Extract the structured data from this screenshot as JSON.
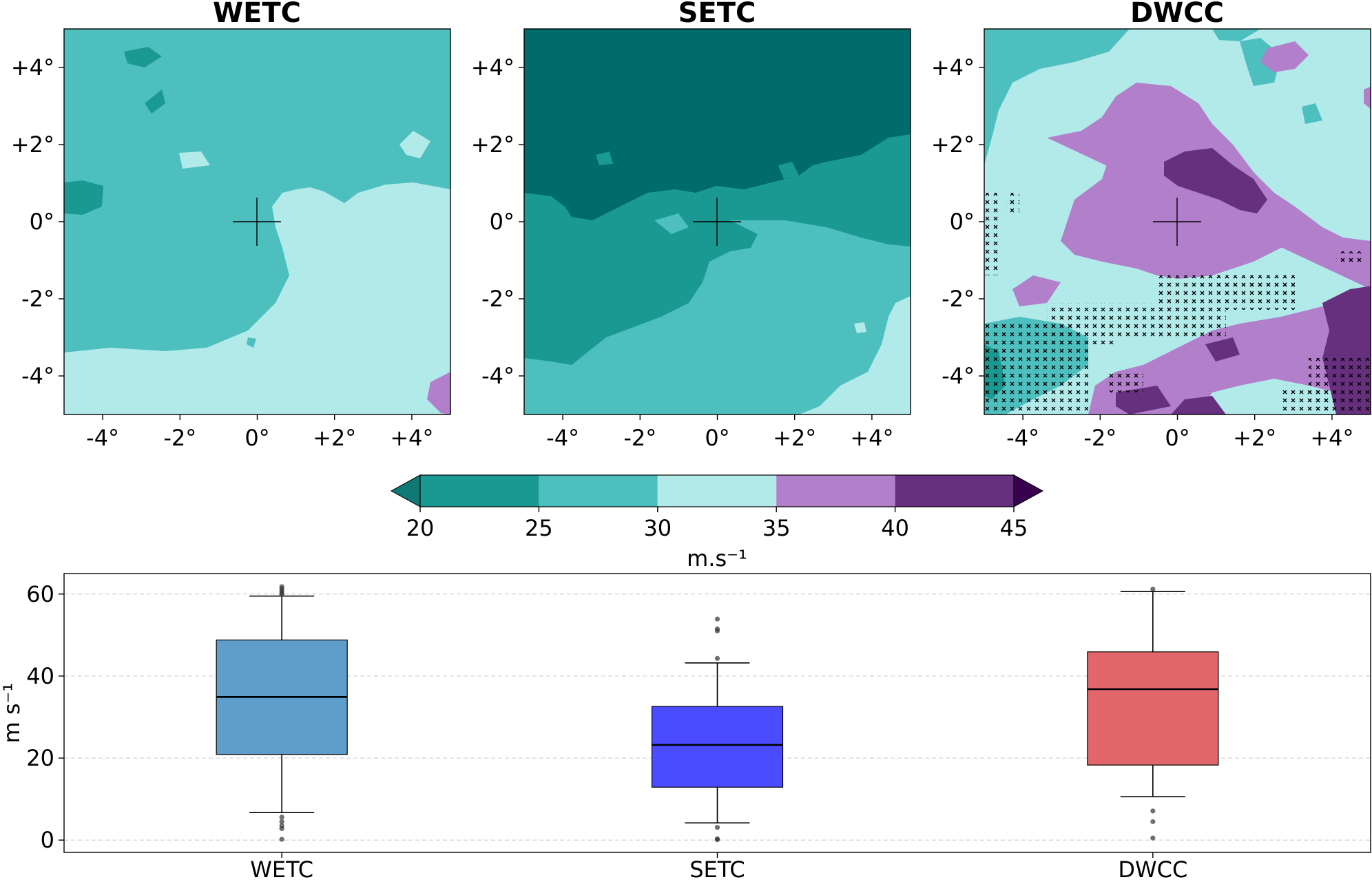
{
  "palette": {
    "b15_20": "#0f7a75",
    "b20_25": "#1a9993",
    "b25_30": "#4ebfbf",
    "b30_35": "#b2eaea",
    "b35_40": "#b27fcb",
    "b40_45": "#66307e",
    "over45": "#3a0050",
    "under15": "#006b6b"
  },
  "chart_data": [
    {
      "type": "heatmap",
      "title": "WETC",
      "xticks": [
        "-4°",
        "-2°",
        "0°",
        "+2°",
        "+4°"
      ],
      "yticks": [
        "+4°",
        "+2°",
        "0°",
        "-2°",
        "-4°"
      ],
      "xlim": [
        -5,
        5
      ],
      "ylim": [
        -5,
        5
      ],
      "center_marker": "plus",
      "dominant_bands": [
        "25-30",
        "30-35"
      ]
    },
    {
      "type": "heatmap",
      "title": "SETC",
      "xticks": [
        "-4°",
        "-2°",
        "0°",
        "+2°",
        "+4°"
      ],
      "yticks": [
        "+4°",
        "+2°",
        "0°",
        "-2°",
        "-4°"
      ],
      "xlim": [
        -5,
        5
      ],
      "ylim": [
        -5,
        5
      ],
      "center_marker": "plus",
      "dominant_bands": [
        "<20",
        "20-25",
        "25-30",
        "30-35"
      ]
    },
    {
      "type": "heatmap",
      "title": "DWCC",
      "xticks": [
        "-4°",
        "-2°",
        "0°",
        "+2°",
        "+4°"
      ],
      "yticks": [
        "+4°",
        "+2°",
        "0°",
        "-2°",
        "-4°"
      ],
      "xlim": [
        -5,
        5
      ],
      "ylim": [
        -5,
        5
      ],
      "center_marker": "plus",
      "hatching": "x marks",
      "dominant_bands": [
        "25-30",
        "30-35",
        "35-40",
        "40-45"
      ]
    },
    {
      "type": "colorbar",
      "label": "m.s⁻¹",
      "bounds": [
        20,
        25,
        30,
        35,
        40,
        45
      ],
      "tick_labels": [
        "20",
        "25",
        "30",
        "35",
        "40",
        "45"
      ],
      "extend": "both"
    },
    {
      "type": "box",
      "categories": [
        "WETC",
        "SETC",
        "DWCC"
      ],
      "ylabel": "m s⁻¹",
      "ylim": [
        -3,
        65
      ],
      "yticks": [
        0,
        20,
        40,
        60
      ],
      "ytick_labels": [
        "0",
        "20",
        "40",
        "60"
      ],
      "grid": "horizontal dashed",
      "boxes": [
        {
          "name": "WETC",
          "color": "#5f9ecb",
          "whisker_low": 6.7,
          "q1": 20.9,
          "median": 34.9,
          "q3": 48.8,
          "whisker_high": 59.5,
          "outliers": [
            0.2,
            2.8,
            3.5,
            4.5,
            5.6,
            59.9,
            60.3,
            60.8,
            61.3,
            61.8
          ]
        },
        {
          "name": "SETC",
          "color": "#4b4bff",
          "whisker_low": 4.2,
          "q1": 12.9,
          "median": 23.2,
          "q3": 32.6,
          "whisker_high": 43.2,
          "outliers": [
            0.1,
            0.3,
            3.1,
            44.3,
            51.0,
            51.5,
            53.9
          ]
        },
        {
          "name": "DWCC",
          "color": "#e2666a",
          "whisker_low": 10.6,
          "q1": 18.3,
          "median": 36.8,
          "q3": 45.9,
          "whisker_high": 60.6,
          "outliers": [
            0.5,
            4.5,
            7.1,
            61.2
          ]
        }
      ]
    }
  ]
}
